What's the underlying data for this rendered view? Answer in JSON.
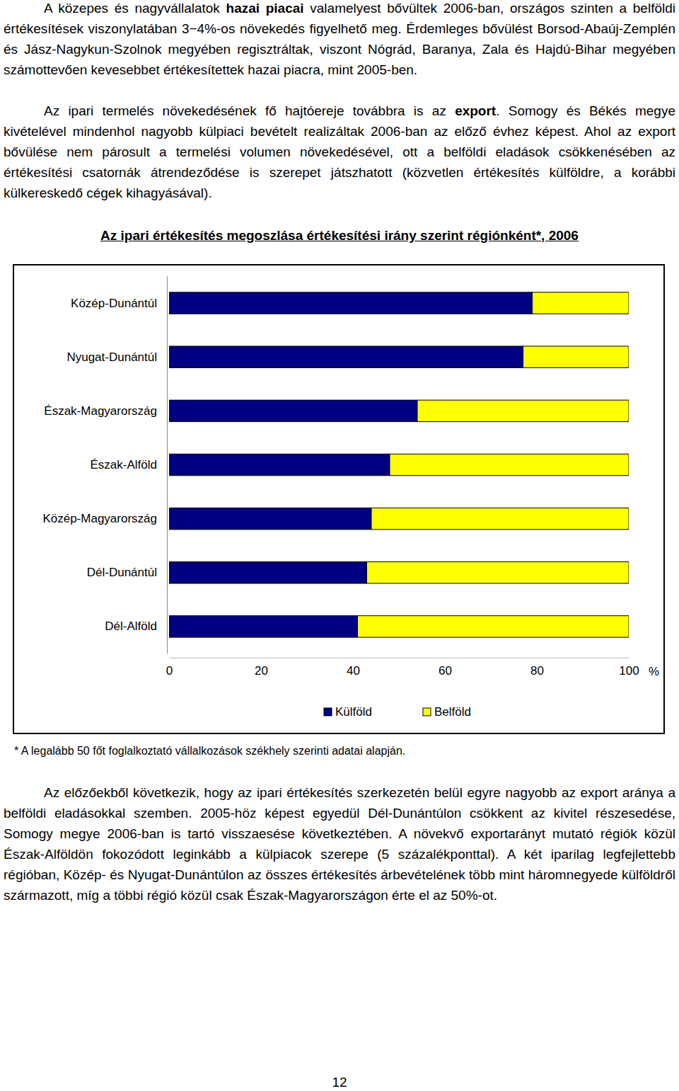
{
  "document": {
    "paragraphs": [
      {
        "runs": [
          {
            "text": "A közepes és nagyvállalatok "
          },
          {
            "text": "hazai piacai",
            "bold": true
          },
          {
            "text": " valamelyest bővültek 2006-ban, országos szinten a belföldi értékesítések viszonylatában 3−4%-os növekedés figyelhető meg. Érdemleges bővülést Borsod-Abaúj-Zemplén és Jász-Nagykun-Szolnok megyében regisztráltak, viszont Nógrád, Baranya, Zala és Hajdú-Bihar megyében számottevően kevesebbet értékesítettek hazai piacra, mint 2005-ben."
          }
        ]
      },
      {
        "runs": [
          {
            "text": "Az ipari termelés növekedésének fő hajtóereje továbbra is az "
          },
          {
            "text": "export",
            "bold": true
          },
          {
            "text": ". Somogy és Békés megye kivételével mindenhol nagyobb külpiaci bevételt realizáltak 2006-ban az előző évhez képest. Ahol az export bővülése nem párosult a termelési volumen növekedésével, ott a belföldi eladások csökkenésében az értékesítési csatornák átrendeződése is szerepet játszhatott (közvetlen értékesítés külföldre, a korábbi külkereskedő cégek kihagyásával)."
          }
        ]
      },
      {
        "runs": [
          {
            "text": "Az előzőekből következik, hogy az ipari értékesítés szerkezetén belül egyre nagyobb az export aránya a belföldi eladásokkal szemben. 2005-höz képest egyedül Dél-Dunántúlon csökkent az kivitel részesedése, Somogy megye 2006-ban is tartó visszaesése következtében. A növekvő exportarányt mutató régiók közül Észak-Alföldön fokozódott leginkább a külpiacok szerepe (5 százalékponttal). A két iparilag legfejlettebb régióban, Közép- és Nyugat-Dunántúlon az összes értékesítés árbevételének több mint háromnegyede külföldről származott, míg a többi régió közül csak Észak-Magyarországon érte el az 50%-ot."
          }
        ]
      }
    ],
    "footnote": "* A legalább 50 főt foglalkoztató vállalkozások székhely szerinti adatai alapján.",
    "page_number": "12"
  },
  "chart_data": {
    "type": "bar",
    "orientation": "horizontal",
    "stacked": true,
    "title": "Az ipari értékesítés megoszlása értékesítési irány szerint régiónként*, 2006",
    "categories": [
      "Közép-Dunántúl",
      "Nyugat-Dunántúl",
      "Észak-Magyarország",
      "Észak-Alföld",
      "Közép-Magyarország",
      "Dél-Dunántúl",
      "Dél-Alföld"
    ],
    "series": [
      {
        "name": "Külföld",
        "color": "#000080",
        "values": [
          79,
          77,
          54,
          48,
          44,
          43,
          41
        ]
      },
      {
        "name": "Belföld",
        "color": "#ffff00",
        "values": [
          21,
          23,
          46,
          52,
          56,
          57,
          59
        ]
      }
    ],
    "xlim": [
      0,
      100
    ],
    "xticks": [
      0,
      20,
      40,
      60,
      80,
      100
    ],
    "xlabel": "%",
    "legend": "bottom"
  }
}
